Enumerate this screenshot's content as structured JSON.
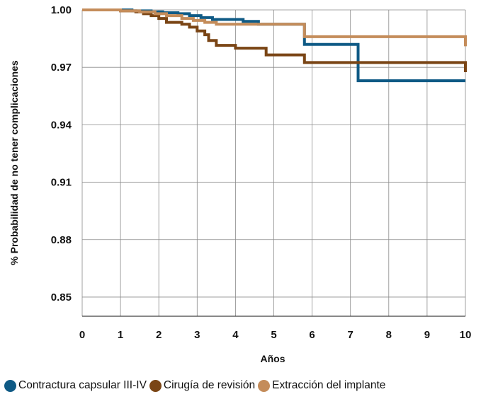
{
  "chart_data": {
    "type": "line",
    "title": "",
    "xlabel": "Años",
    "ylabel": "% Probabilidad de no tener complicaciones",
    "xlim": [
      0,
      10
    ],
    "ylim": [
      0.84,
      1.0
    ],
    "x_ticks": [
      "0",
      "1",
      "2",
      "3",
      "4",
      "5",
      "6",
      "7",
      "8",
      "9",
      "10"
    ],
    "y_ticks": [
      "1.00",
      "0.97",
      "0.94",
      "0.91",
      "0.88",
      "0.85"
    ],
    "y_tick_values": [
      1.0,
      0.97,
      0.94,
      0.91,
      0.88,
      0.85
    ],
    "grid": true,
    "legend_position": "bottom",
    "series": [
      {
        "name": "Contractura capsular III-IV",
        "color": "#0f5a85",
        "x": [
          0,
          1.25,
          1.3,
          1.8,
          2.1,
          2.5,
          2.8,
          3.1,
          3.4,
          4.2,
          4.6,
          5.8,
          7.2,
          10
        ],
        "y": [
          1.0,
          1.0,
          0.9995,
          0.999,
          0.9985,
          0.998,
          0.997,
          0.996,
          0.995,
          0.994,
          0.9925,
          0.982,
          0.963,
          0.963
        ]
      },
      {
        "name": "Cirugía de revisión",
        "color": "#7a4515",
        "x": [
          0,
          1.0,
          1.4,
          1.6,
          1.8,
          2.0,
          2.2,
          2.6,
          2.8,
          3.0,
          3.2,
          3.3,
          3.5,
          4.0,
          4.8,
          5.8,
          10
        ],
        "y": [
          1.0,
          0.9995,
          0.999,
          0.998,
          0.997,
          0.9955,
          0.9935,
          0.9925,
          0.991,
          0.989,
          0.987,
          0.984,
          0.9815,
          0.98,
          0.9765,
          0.9725,
          0.9675
        ]
      },
      {
        "name": "Extracción del implante",
        "color": "#c48c5a",
        "x": [
          0,
          1.0,
          1.5,
          1.9,
          2.2,
          2.6,
          2.9,
          3.2,
          3.5,
          5.8,
          10
        ],
        "y": [
          1.0,
          0.9995,
          0.999,
          0.998,
          0.997,
          0.9955,
          0.9945,
          0.9935,
          0.9925,
          0.986,
          0.981
        ]
      }
    ]
  }
}
